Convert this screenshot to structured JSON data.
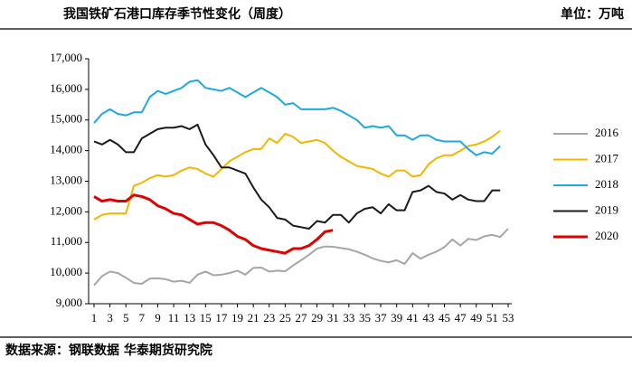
{
  "chart_data": {
    "type": "line",
    "title": "我国铁矿石港口库存季节性变化（周度）",
    "unit": "单位：万吨",
    "source": "数据来源：钢联数据 华泰期货研究院",
    "x": [
      1,
      2,
      3,
      4,
      5,
      6,
      7,
      8,
      9,
      10,
      11,
      12,
      13,
      14,
      15,
      16,
      17,
      18,
      19,
      20,
      21,
      22,
      23,
      24,
      25,
      26,
      27,
      28,
      29,
      30,
      31,
      32,
      33,
      34,
      35,
      36,
      37,
      38,
      39,
      40,
      41,
      42,
      43,
      44,
      45,
      46,
      47,
      48,
      49,
      50,
      51,
      52,
      53
    ],
    "xlim": [
      1,
      53
    ],
    "xticks": [
      1,
      3,
      5,
      7,
      9,
      11,
      13,
      15,
      17,
      19,
      21,
      23,
      25,
      27,
      29,
      31,
      33,
      35,
      37,
      39,
      41,
      43,
      45,
      47,
      49,
      51,
      53
    ],
    "ylim": [
      9000,
      17000
    ],
    "yticks": [
      {
        "value": 9000,
        "label": "9,000"
      },
      {
        "value": 10000,
        "label": "10,000"
      },
      {
        "value": 11000,
        "label": "11,000"
      },
      {
        "value": 12000,
        "label": "12,000"
      },
      {
        "value": 13000,
        "label": "13,000"
      },
      {
        "value": 14000,
        "label": "14,000"
      },
      {
        "value": 15000,
        "label": "15,000"
      },
      {
        "value": 16000,
        "label": "16,000"
      },
      {
        "value": 17000,
        "label": "17,000"
      }
    ],
    "legend": "right",
    "series": [
      {
        "name": "2016",
        "color": "#a6a6a6",
        "values": [
          9600,
          9900,
          10050,
          10000,
          9850,
          9680,
          9650,
          9820,
          9830,
          9800,
          9720,
          9750,
          9680,
          9950,
          10050,
          9930,
          9950,
          10000,
          10080,
          9950,
          10170,
          10180,
          10050,
          10080,
          10060,
          10250,
          10420,
          10600,
          10800,
          10870,
          10860,
          10820,
          10780,
          10700,
          10600,
          10480,
          10400,
          10350,
          10420,
          10300,
          10650,
          10470,
          10600,
          10700,
          10850,
          11100,
          10900,
          11120,
          11080,
          11200,
          11250,
          11180,
          11450
        ]
      },
      {
        "name": "2017",
        "color": "#f2b600",
        "values": [
          11750,
          11900,
          11950,
          11950,
          11950,
          12850,
          12950,
          13100,
          13200,
          13150,
          13200,
          13350,
          13450,
          13400,
          13250,
          13150,
          13400,
          13650,
          13800,
          13950,
          14050,
          14050,
          14400,
          14250,
          14550,
          14450,
          14250,
          14300,
          14350,
          14250,
          14000,
          13800,
          13650,
          13500,
          13450,
          13400,
          13250,
          13150,
          13350,
          13350,
          13150,
          13200,
          13550,
          13750,
          13850,
          13850,
          14000,
          14150,
          14200,
          14300,
          14450,
          14650,
          null
        ]
      },
      {
        "name": "2018",
        "color": "#1ca8e0",
        "values": [
          14900,
          15200,
          15350,
          15200,
          15150,
          15250,
          15250,
          15750,
          15950,
          15850,
          15950,
          16050,
          16250,
          16300,
          16050,
          16000,
          15950,
          16050,
          15900,
          15750,
          15900,
          16050,
          15900,
          15750,
          15500,
          15550,
          15350,
          15350,
          15350,
          15350,
          15400,
          15300,
          15150,
          15000,
          14750,
          14800,
          14750,
          14800,
          14500,
          14500,
          14350,
          14500,
          14500,
          14350,
          14300,
          14300,
          14300,
          14050,
          13850,
          13950,
          13900,
          14150,
          null
        ]
      },
      {
        "name": "2019",
        "color": "#1a1a1a",
        "values": [
          14300,
          14200,
          14350,
          14200,
          13950,
          13950,
          14400,
          14550,
          14700,
          14750,
          14750,
          14800,
          14700,
          14850,
          14200,
          13850,
          13450,
          13450,
          13350,
          13250,
          12800,
          12400,
          12150,
          11800,
          11750,
          11550,
          11500,
          11450,
          11700,
          11650,
          11900,
          11900,
          11650,
          11950,
          12100,
          12150,
          11950,
          12250,
          12050,
          12050,
          12650,
          12700,
          12850,
          12650,
          12600,
          12400,
          12550,
          12400,
          12350,
          12350,
          12700,
          12700,
          null
        ]
      },
      {
        "name": "2020",
        "color": "#e00000",
        "values": [
          12500,
          12350,
          12400,
          12350,
          12350,
          12550,
          12500,
          12400,
          12200,
          12100,
          11950,
          11900,
          11750,
          11600,
          11650,
          11650,
          11550,
          11400,
          11200,
          11100,
          10900,
          10800,
          10750,
          10700,
          10650,
          10800,
          10800,
          10900,
          11100,
          11350,
          11400,
          null,
          null,
          null,
          null,
          null,
          null,
          null,
          null,
          null,
          null,
          null,
          null,
          null,
          null,
          null,
          null,
          null,
          null,
          null,
          null,
          null,
          null
        ]
      }
    ]
  }
}
